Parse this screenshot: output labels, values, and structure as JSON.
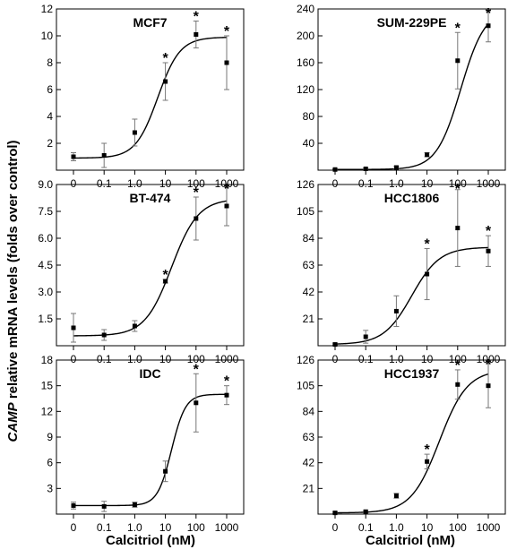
{
  "figure": {
    "xlabel": "Calcitriol (nM)",
    "ylabel_italic": "CAMP",
    "ylabel_rest": " relative mRNA levels (folds over control)"
  },
  "chart_data": [
    {
      "type": "scatter",
      "title": "MCF7",
      "x_ticks": [
        "0",
        "0.1",
        "1.0",
        "10",
        "100",
        "1000"
      ],
      "y_ticks": [
        "2",
        "4",
        "6",
        "8",
        "10",
        "12"
      ],
      "ylim": [
        0,
        12
      ],
      "points": [
        {
          "x": "0",
          "y": 1.0,
          "err": 0.3,
          "sig": false
        },
        {
          "x": "0.1",
          "y": 1.1,
          "err": 0.9,
          "sig": false
        },
        {
          "x": "1.0",
          "y": 2.8,
          "err": 1.0,
          "sig": false
        },
        {
          "x": "10",
          "y": 6.6,
          "err": 1.4,
          "sig": true
        },
        {
          "x": "100",
          "y": 10.1,
          "err": 1.0,
          "sig": true
        },
        {
          "x": "1000",
          "y": 8.0,
          "err": 2.0,
          "sig": true
        }
      ],
      "curve": {
        "bottom": 0.9,
        "top": 9.9,
        "ec50_log": 0.75,
        "hill": 1.2
      }
    },
    {
      "type": "scatter",
      "title": "SUM-229PE",
      "x_ticks": [
        "0",
        "0.1",
        "1.0",
        "10",
        "100",
        "1000"
      ],
      "y_ticks": [
        "40",
        "80",
        "120",
        "160",
        "200",
        "240"
      ],
      "ylim": [
        0,
        240
      ],
      "points": [
        {
          "x": "0",
          "y": 1,
          "err": 1,
          "sig": false
        },
        {
          "x": "0.1",
          "y": 2,
          "err": 1,
          "sig": false
        },
        {
          "x": "1.0",
          "y": 4,
          "err": 2,
          "sig": false
        },
        {
          "x": "10",
          "y": 23,
          "err": 3,
          "sig": false
        },
        {
          "x": "100",
          "y": 163,
          "err": 42,
          "sig": true
        },
        {
          "x": "1000",
          "y": 215,
          "err": 24,
          "sig": true
        }
      ],
      "curve": {
        "bottom": 1,
        "top": 240,
        "ec50_log": 2.1,
        "hill": 1.1
      }
    },
    {
      "type": "scatter",
      "title": "BT-474",
      "x_ticks": [
        "0",
        "0.1",
        "1.0",
        "10",
        "100",
        "1000"
      ],
      "y_ticks": [
        "1.5",
        "3.0",
        "4.5",
        "6.0",
        "7.5",
        "9.0"
      ],
      "ylim": [
        0,
        9
      ],
      "points": [
        {
          "x": "0",
          "y": 1.0,
          "err": 0.8,
          "sig": false
        },
        {
          "x": "0.1",
          "y": 0.6,
          "err": 0.3,
          "sig": false
        },
        {
          "x": "1.0",
          "y": 1.1,
          "err": 0.3,
          "sig": false
        },
        {
          "x": "10",
          "y": 3.6,
          "err": 0.1,
          "sig": true
        },
        {
          "x": "100",
          "y": 7.1,
          "err": 1.2,
          "sig": true
        },
        {
          "x": "1000",
          "y": 7.8,
          "err": 1.1,
          "sig": true
        }
      ],
      "curve": {
        "bottom": 0.55,
        "top": 8.2,
        "ec50_log": 1.2,
        "hill": 1.0
      }
    },
    {
      "type": "scatter",
      "title": "HCC1806",
      "x_ticks": [
        "0",
        "0.1",
        "1.0",
        "10",
        "100",
        "1000"
      ],
      "y_ticks": [
        "21",
        "42",
        "63",
        "84",
        "105",
        "126"
      ],
      "ylim": [
        0,
        126
      ],
      "points": [
        {
          "x": "0",
          "y": 1,
          "err": 1,
          "sig": false
        },
        {
          "x": "0.1",
          "y": 7,
          "err": 5,
          "sig": false
        },
        {
          "x": "1.0",
          "y": 27,
          "err": 12,
          "sig": false
        },
        {
          "x": "10",
          "y": 56,
          "err": 20,
          "sig": true
        },
        {
          "x": "100",
          "y": 92,
          "err": 30,
          "sig": true
        },
        {
          "x": "1000",
          "y": 74,
          "err": 12,
          "sig": true
        }
      ],
      "curve": {
        "bottom": 1,
        "top": 77,
        "ec50_log": 0.5,
        "hill": 0.95
      }
    },
    {
      "type": "scatter",
      "title": "IDC",
      "x_ticks": [
        "0",
        "0.1",
        "1.0",
        "10",
        "100",
        "1000"
      ],
      "y_ticks": [
        "3",
        "6",
        "9",
        "12",
        "15",
        "18"
      ],
      "ylim": [
        0,
        18
      ],
      "points": [
        {
          "x": "0",
          "y": 1.0,
          "err": 0.4,
          "sig": false
        },
        {
          "x": "0.1",
          "y": 0.9,
          "err": 0.6,
          "sig": false
        },
        {
          "x": "1.0",
          "y": 1.1,
          "err": 0.3,
          "sig": false
        },
        {
          "x": "10",
          "y": 5.0,
          "err": 1.2,
          "sig": false
        },
        {
          "x": "100",
          "y": 13.0,
          "err": 3.4,
          "sig": true
        },
        {
          "x": "1000",
          "y": 13.9,
          "err": 1.1,
          "sig": true
        }
      ],
      "curve": {
        "bottom": 1.0,
        "top": 14.0,
        "ec50_log": 1.2,
        "hill": 1.9
      }
    },
    {
      "type": "scatter",
      "title": "HCC1937",
      "x_ticks": [
        "0",
        "0.1",
        "1.0",
        "10",
        "100",
        "1000"
      ],
      "y_ticks": [
        "21",
        "42",
        "63",
        "84",
        "105",
        "126"
      ],
      "ylim": [
        0,
        126
      ],
      "points": [
        {
          "x": "0",
          "y": 1,
          "err": 1,
          "sig": false
        },
        {
          "x": "0.1",
          "y": 2,
          "err": 1,
          "sig": false
        },
        {
          "x": "1.0",
          "y": 15,
          "err": 2,
          "sig": false
        },
        {
          "x": "10",
          "y": 43,
          "err": 6,
          "sig": true
        },
        {
          "x": "100",
          "y": 106,
          "err": 12,
          "sig": true
        },
        {
          "x": "1000",
          "y": 105,
          "err": 18,
          "sig": true
        }
      ],
      "curve": {
        "bottom": 1,
        "top": 118,
        "ec50_log": 1.4,
        "hill": 0.95
      }
    }
  ]
}
